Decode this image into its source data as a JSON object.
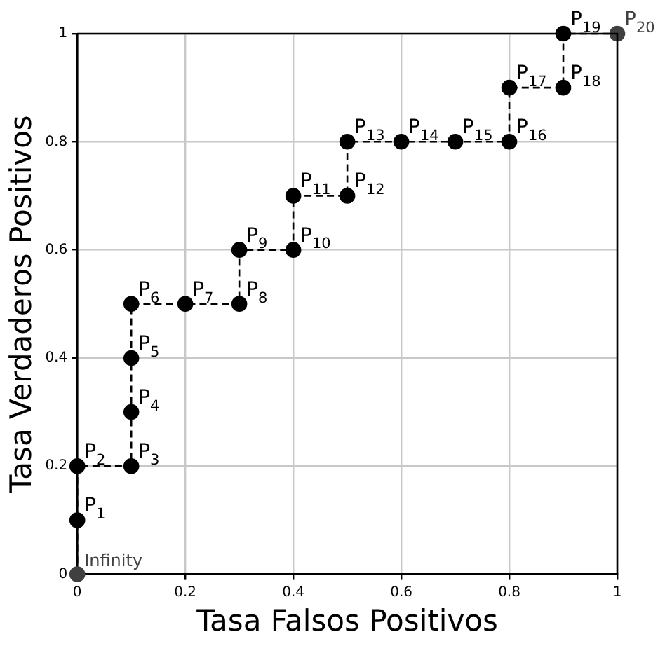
{
  "chart_data": {
    "type": "line",
    "xlabel": "Tasa Falsos Positivos",
    "ylabel": "Tasa Verdaderos Positivos",
    "x": [
      0,
      0,
      0,
      0.1,
      0.1,
      0.1,
      0.1,
      0.2,
      0.3,
      0.3,
      0.4,
      0.4,
      0.5,
      0.5,
      0.6,
      0.7,
      0.8,
      0.8,
      0.9,
      0.9,
      1
    ],
    "series": [
      {
        "color": "#000000",
        "values": [
          0,
          0.1,
          0.2,
          0.2,
          0.3,
          0.4,
          0.5,
          0.5,
          0.5,
          0.6,
          0.6,
          0.7,
          0.7,
          0.8,
          0.8,
          0.8,
          0.8,
          0.9,
          0.9,
          1,
          1
        ],
        "colors": [
          "#404040",
          "#000000",
          "#000000",
          "#000000",
          "#000000",
          "#000000",
          "#000000",
          "#000000",
          "#000000",
          "#000000",
          "#000000",
          "#000000",
          "#000000",
          "#000000",
          "#000000",
          "#000000",
          "#000000",
          "#000000",
          "#000000",
          "#000000",
          "#404040"
        ]
      }
    ],
    "xlim": [
      0,
      1
    ],
    "ylim": [
      0,
      1
    ],
    "xticks": [
      0,
      0.2,
      0.4,
      0.6,
      0.8,
      1
    ],
    "yticks": [
      0,
      0.2,
      0.4,
      0.6,
      0.8,
      1
    ],
    "grid": true,
    "legend": false,
    "marker": "circle",
    "line_style": "dashed",
    "annotations": [
      {
        "text": "Infinity",
        "x": 0,
        "y": 0
      },
      {
        "text": "P$_{1}$",
        "x": 0,
        "y": 0.1
      },
      {
        "text": "P$_{2}$",
        "x": 0,
        "y": 0.2
      },
      {
        "text": "P$_{3}$",
        "x": 0.1,
        "y": 0.2
      },
      {
        "text": "P$_{4}$",
        "x": 0.1,
        "y": 0.3
      },
      {
        "text": "P$_{5}$",
        "x": 0.1,
        "y": 0.4
      },
      {
        "text": "P$_{6}$",
        "x": 0.1,
        "y": 0.5
      },
      {
        "text": "P$_{7}$",
        "x": 0.2,
        "y": 0.5
      },
      {
        "text": "P$_{8}$",
        "x": 0.3,
        "y": 0.5
      },
      {
        "text": "P$_{9}$",
        "x": 0.3,
        "y": 0.6
      },
      {
        "text": "P$_{10}$",
        "x": 0.4,
        "y": 0.6
      },
      {
        "text": "P$_{11}$",
        "x": 0.4,
        "y": 0.7
      },
      {
        "text": "P$_{12}$",
        "x": 0.5,
        "y": 0.7
      },
      {
        "text": "P$_{13}$",
        "x": 0.5,
        "y": 0.8
      },
      {
        "text": "P$_{14}$",
        "x": 0.6,
        "y": 0.8
      },
      {
        "text": "P$_{15}$",
        "x": 0.7,
        "y": 0.8
      },
      {
        "text": "P$_{16}$",
        "x": 0.8,
        "y": 0.8
      },
      {
        "text": "P$_{17}$",
        "x": 0.8,
        "y": 0.9
      },
      {
        "text": "P$_{18}$",
        "x": 0.9,
        "y": 0.9
      },
      {
        "text": "P$_{19}$",
        "x": 0.9,
        "y": 1
      },
      {
        "text": "P$_{20}$",
        "x": 1,
        "y": 1
      }
    ]
  }
}
